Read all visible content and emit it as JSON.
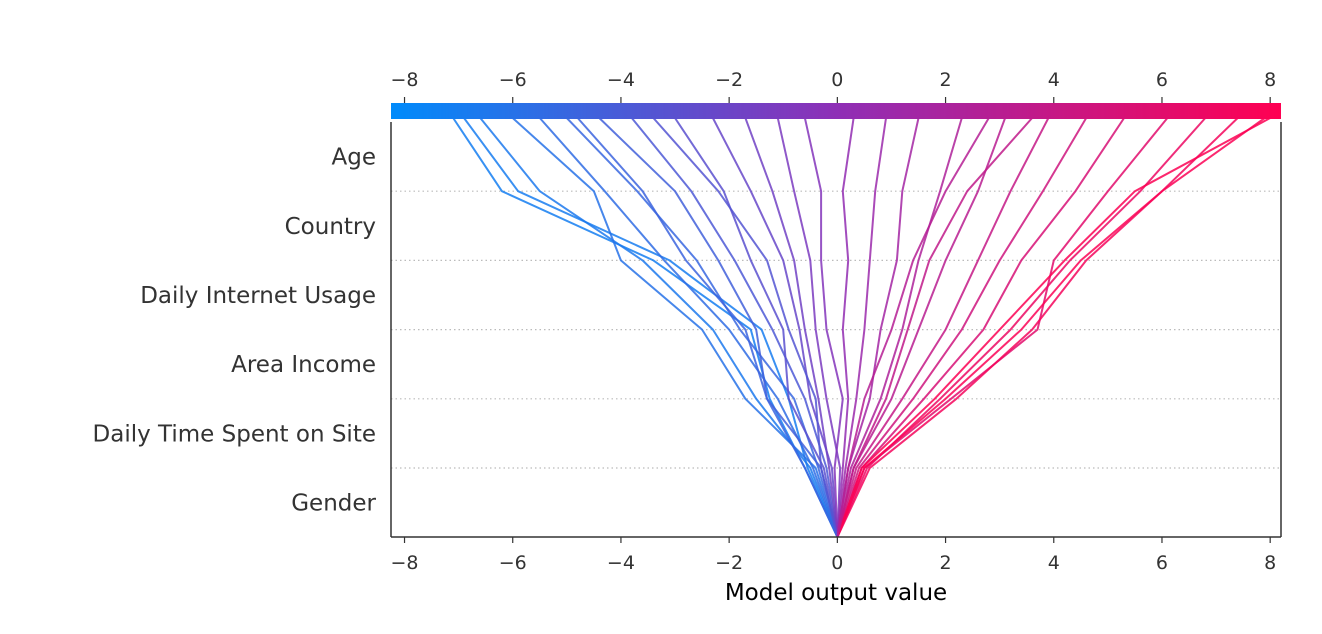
{
  "chart_data": {
    "type": "line",
    "title": "",
    "xlabel": "Model output value",
    "ylabel": "",
    "xlim": [
      -8.25,
      8.2
    ],
    "xticks": [
      -8,
      -6,
      -4,
      -2,
      0,
      2,
      4,
      6,
      8
    ],
    "xtick_labels": [
      "−8",
      "−6",
      "−4",
      "−2",
      "0",
      "2",
      "4",
      "6",
      "8"
    ],
    "features": [
      "Age",
      "Country",
      "Daily Internet Usage",
      "Area Income",
      "Daily Time Spent on Site",
      "Gender"
    ],
    "base_value": 0,
    "colorbar": {
      "low_color": "#008bfb",
      "mid_color": "#8e2fb6",
      "high_color": "#ff0052"
    },
    "series": [
      {
        "values": [
          0.0,
          -0.55,
          -0.9,
          -1.4,
          -3.1,
          -5.9,
          -6.9
        ]
      },
      {
        "values": [
          0.0,
          -0.6,
          -1.25,
          -1.6,
          -3.4,
          -6.2,
          -7.1
        ]
      },
      {
        "values": [
          0.0,
          -0.5,
          -1.5,
          -2.3,
          -3.6,
          -5.5,
          -6.6
        ]
      },
      {
        "values": [
          0.0,
          -0.4,
          -1.7,
          -2.5,
          -4.0,
          -4.5,
          -6.0
        ]
      },
      {
        "values": [
          0.0,
          -0.45,
          -1.1,
          -2.0,
          -3.2,
          -4.3,
          -5.5
        ]
      },
      {
        "values": [
          0.0,
          -0.35,
          -0.8,
          -1.8,
          -2.6,
          -3.7,
          -5.0
        ]
      },
      {
        "values": [
          0.0,
          -0.3,
          -1.3,
          -1.5,
          -2.2,
          -3.0,
          -4.4
        ]
      },
      {
        "values": [
          0.0,
          -0.2,
          -0.6,
          -1.2,
          -1.9,
          -2.7,
          -3.8
        ]
      },
      {
        "values": [
          0.0,
          -0.25,
          -0.9,
          -1.0,
          -1.6,
          -2.1,
          -3.0
        ]
      },
      {
        "values": [
          0.0,
          -0.1,
          -0.5,
          -0.7,
          -1.0,
          -1.6,
          -2.3
        ]
      },
      {
        "values": [
          0.0,
          -0.15,
          -0.35,
          -0.6,
          -0.8,
          -1.2,
          -1.7
        ]
      },
      {
        "values": [
          0.0,
          0.05,
          -0.2,
          -0.4,
          -0.5,
          -0.8,
          -1.1
        ]
      },
      {
        "values": [
          0.0,
          -0.05,
          0.1,
          -0.2,
          -0.3,
          -0.3,
          -0.6
        ]
      },
      {
        "values": [
          0.0,
          0.1,
          0.2,
          0.1,
          0.2,
          0.1,
          0.3
        ]
      },
      {
        "values": [
          0.0,
          0.15,
          0.35,
          0.5,
          0.6,
          0.7,
          0.9
        ]
      },
      {
        "values": [
          0.0,
          0.2,
          0.6,
          0.8,
          1.1,
          1.2,
          1.5
        ]
      },
      {
        "values": [
          0.0,
          0.25,
          0.8,
          1.2,
          1.5,
          1.9,
          2.3
        ]
      },
      {
        "values": [
          0.0,
          0.3,
          1.0,
          1.5,
          2.0,
          2.6,
          3.1
        ]
      },
      {
        "values": [
          0.0,
          0.35,
          1.2,
          2.0,
          2.6,
          3.2,
          3.9
        ]
      },
      {
        "values": [
          0.0,
          0.4,
          1.4,
          2.3,
          3.0,
          3.8,
          4.6
        ]
      },
      {
        "values": [
          0.0,
          0.45,
          1.6,
          2.7,
          3.4,
          4.4,
          5.3
        ]
      },
      {
        "values": [
          0.0,
          0.5,
          2.1,
          3.7,
          4.0,
          5.0,
          6.1
        ]
      },
      {
        "values": [
          0.0,
          0.55,
          1.9,
          3.2,
          4.3,
          5.6,
          6.8
        ]
      },
      {
        "values": [
          0.0,
          0.6,
          2.2,
          3.6,
          4.6,
          6.0,
          7.4
        ]
      },
      {
        "values": [
          0.0,
          0.5,
          2.0,
          3.4,
          4.5,
          6.0,
          7.9
        ]
      },
      {
        "values": [
          0.0,
          0.45,
          1.8,
          3.0,
          4.2,
          5.5,
          8.0
        ]
      },
      {
        "values": [
          0.0,
          -0.6,
          -1.3,
          -1.7,
          -2.8,
          -3.6,
          -4.8
        ]
      },
      {
        "values": [
          0.0,
          0.3,
          0.9,
          1.3,
          1.7,
          2.4,
          3.6
        ]
      },
      {
        "values": [
          0.0,
          -0.3,
          -0.4,
          -0.9,
          -1.3,
          -2.2,
          -3.4
        ]
      },
      {
        "values": [
          0.0,
          0.2,
          0.5,
          1.0,
          1.4,
          2.0,
          2.8
        ]
      }
    ]
  }
}
